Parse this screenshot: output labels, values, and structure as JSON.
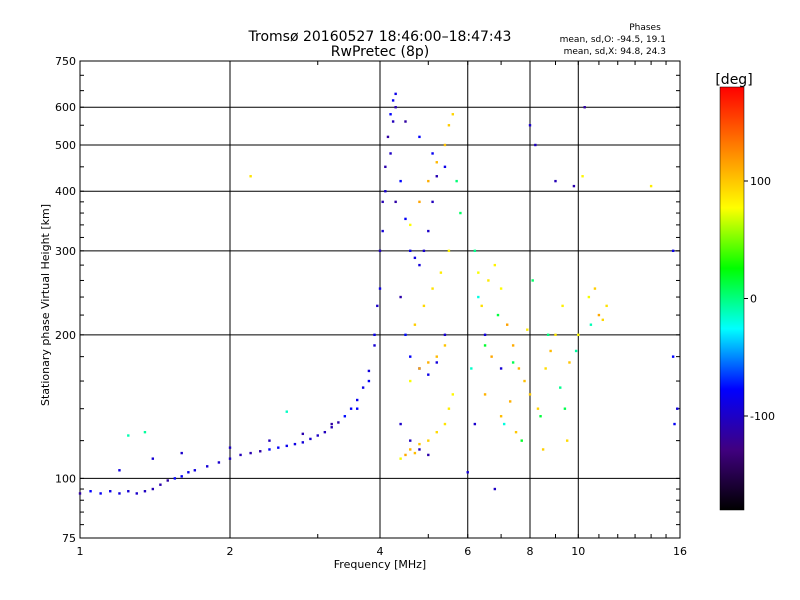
{
  "chart_data": {
    "type": "scatter",
    "title": "Tromsø 20160527 18:46:00–18:47:43",
    "subtitle": "RwPretec (8p)",
    "xlabel": "Frequency [MHz]",
    "ylabel": "Stationary phase Virtual Height [km]",
    "x_scale": "log",
    "y_scale": "log",
    "xlim": [
      1,
      16
    ],
    "ylim": [
      75,
      750
    ],
    "x_ticks": [
      1,
      2,
      4,
      6,
      8,
      10,
      16
    ],
    "y_ticks": [
      75,
      100,
      200,
      300,
      400,
      500,
      600,
      750
    ],
    "grid": true,
    "stats": {
      "heading": "Phases",
      "line_o": "mean, sd,O: -94.5, 19.1",
      "line_x": "mean, sd,X:  94.8, 24.3"
    },
    "colorbar": {
      "label": "[deg]",
      "range": [
        -180,
        180
      ],
      "ticks": [
        100,
        0,
        -100
      ],
      "colors": [
        "#ff0000",
        "#ff8000",
        "#ffff00",
        "#00ff00",
        "#00ffff",
        "#0000ff",
        "#400080",
        "#000000"
      ]
    },
    "series": [
      {
        "mode": "O",
        "phase_deg": -95,
        "points": [
          [
            1.0,
            93
          ],
          [
            1.05,
            94
          ],
          [
            1.1,
            93
          ],
          [
            1.15,
            94
          ],
          [
            1.2,
            93
          ],
          [
            1.25,
            94
          ],
          [
            1.3,
            93
          ],
          [
            1.35,
            94
          ],
          [
            1.4,
            95
          ],
          [
            1.45,
            97
          ],
          [
            1.5,
            99
          ],
          [
            1.55,
            100
          ],
          [
            1.6,
            101
          ],
          [
            1.65,
            103
          ],
          [
            1.7,
            104
          ],
          [
            1.8,
            106
          ],
          [
            1.9,
            108
          ],
          [
            2.0,
            110
          ],
          [
            2.1,
            112
          ],
          [
            2.2,
            113
          ],
          [
            2.3,
            114
          ],
          [
            2.4,
            115
          ],
          [
            2.5,
            116
          ],
          [
            2.6,
            117
          ],
          [
            2.7,
            118
          ],
          [
            2.8,
            119
          ],
          [
            2.9,
            121
          ],
          [
            3.0,
            123
          ],
          [
            3.1,
            125
          ],
          [
            3.2,
            128
          ],
          [
            3.3,
            131
          ],
          [
            3.4,
            135
          ],
          [
            3.5,
            140
          ],
          [
            3.6,
            146
          ],
          [
            3.7,
            155
          ],
          [
            3.8,
            168
          ],
          [
            3.9,
            190
          ],
          [
            3.95,
            230
          ],
          [
            4.0,
            300
          ],
          [
            4.05,
            380
          ],
          [
            4.1,
            450
          ],
          [
            4.15,
            520
          ],
          [
            4.2,
            580
          ],
          [
            4.25,
            620
          ],
          [
            4.3,
            640
          ],
          [
            1.2,
            104
          ],
          [
            1.4,
            110
          ],
          [
            1.6,
            113
          ],
          [
            2.0,
            116
          ],
          [
            2.4,
            120
          ],
          [
            2.8,
            124
          ],
          [
            3.2,
            130
          ],
          [
            3.6,
            140
          ],
          [
            3.8,
            160
          ],
          [
            3.9,
            200
          ],
          [
            4.0,
            250
          ],
          [
            4.05,
            330
          ],
          [
            4.1,
            400
          ],
          [
            4.2,
            480
          ],
          [
            4.25,
            560
          ],
          [
            4.3,
            600
          ],
          [
            4.3,
            380
          ],
          [
            4.4,
            420
          ],
          [
            4.5,
            350
          ],
          [
            4.6,
            300
          ],
          [
            4.7,
            290
          ],
          [
            4.8,
            280
          ],
          [
            4.9,
            300
          ],
          [
            5.0,
            330
          ],
          [
            5.1,
            380
          ],
          [
            5.2,
            430
          ],
          [
            4.4,
            240
          ],
          [
            4.5,
            200
          ],
          [
            4.6,
            180
          ],
          [
            4.8,
            170
          ],
          [
            5.0,
            165
          ],
          [
            5.2,
            175
          ],
          [
            5.4,
            200
          ],
          [
            4.4,
            130
          ],
          [
            4.6,
            120
          ],
          [
            4.8,
            115
          ],
          [
            5.0,
            112
          ],
          [
            4.5,
            560
          ],
          [
            4.8,
            520
          ],
          [
            5.1,
            480
          ],
          [
            5.4,
            450
          ],
          [
            6.5,
            200
          ],
          [
            7.0,
            170
          ],
          [
            8.0,
            550
          ],
          [
            8.2,
            500
          ],
          [
            9.0,
            420
          ],
          [
            9.8,
            410
          ],
          [
            10.3,
            600
          ],
          [
            15.5,
            180
          ],
          [
            15.6,
            130
          ],
          [
            15.5,
            300
          ],
          [
            15.8,
            140
          ],
          [
            6.0,
            103
          ],
          [
            6.2,
            130
          ],
          [
            6.8,
            95
          ]
        ]
      },
      {
        "mode": "X",
        "phase_deg": 95,
        "points": [
          [
            4.4,
            110
          ],
          [
            4.5,
            112
          ],
          [
            4.6,
            115
          ],
          [
            4.7,
            113
          ],
          [
            4.8,
            118
          ],
          [
            5.0,
            120
          ],
          [
            5.2,
            125
          ],
          [
            5.4,
            130
          ],
          [
            5.5,
            140
          ],
          [
            5.6,
            150
          ],
          [
            4.6,
            160
          ],
          [
            4.8,
            170
          ],
          [
            5.0,
            175
          ],
          [
            5.2,
            180
          ],
          [
            5.4,
            190
          ],
          [
            4.7,
            210
          ],
          [
            4.9,
            230
          ],
          [
            5.1,
            250
          ],
          [
            5.3,
            270
          ],
          [
            5.5,
            300
          ],
          [
            4.6,
            340
          ],
          [
            4.8,
            380
          ],
          [
            5.0,
            420
          ],
          [
            5.2,
            460
          ],
          [
            5.4,
            500
          ],
          [
            5.5,
            550
          ],
          [
            5.6,
            580
          ],
          [
            6.4,
            230
          ],
          [
            6.6,
            260
          ],
          [
            6.8,
            280
          ],
          [
            7.0,
            250
          ],
          [
            7.2,
            210
          ],
          [
            7.4,
            190
          ],
          [
            7.6,
            170
          ],
          [
            7.8,
            160
          ],
          [
            8.0,
            150
          ],
          [
            8.3,
            140
          ],
          [
            8.6,
            170
          ],
          [
            9.0,
            200
          ],
          [
            9.3,
            230
          ],
          [
            10.0,
            200
          ],
          [
            10.5,
            240
          ],
          [
            11.0,
            220
          ],
          [
            6.5,
            150
          ],
          [
            7.0,
            135
          ],
          [
            7.5,
            125
          ],
          [
            8.5,
            115
          ],
          [
            9.5,
            120
          ],
          [
            2.2,
            430
          ],
          [
            14.0,
            410
          ],
          [
            10.2,
            430
          ],
          [
            6.3,
            270
          ],
          [
            6.7,
            180
          ],
          [
            7.3,
            145
          ],
          [
            8.8,
            185
          ],
          [
            9.6,
            175
          ],
          [
            10.8,
            250
          ],
          [
            11.2,
            215
          ],
          [
            11.4,
            230
          ],
          [
            7.9,
            205
          ]
        ]
      },
      {
        "mode": "scattered",
        "phase_deg": 0,
        "points": [
          [
            6.3,
            240
          ],
          [
            6.5,
            190
          ],
          [
            6.9,
            220
          ],
          [
            7.4,
            175
          ],
          [
            8.1,
            260
          ],
          [
            8.7,
            200
          ],
          [
            9.2,
            155
          ],
          [
            9.9,
            185
          ],
          [
            10.6,
            210
          ],
          [
            6.1,
            170
          ],
          [
            7.1,
            130
          ],
          [
            7.7,
            120
          ],
          [
            8.4,
            135
          ],
          [
            9.4,
            140
          ],
          [
            5.8,
            360
          ],
          [
            5.7,
            420
          ],
          [
            6.2,
            300
          ],
          [
            1.35,
            125
          ],
          [
            1.25,
            123
          ],
          [
            2.6,
            138
          ]
        ]
      }
    ]
  }
}
